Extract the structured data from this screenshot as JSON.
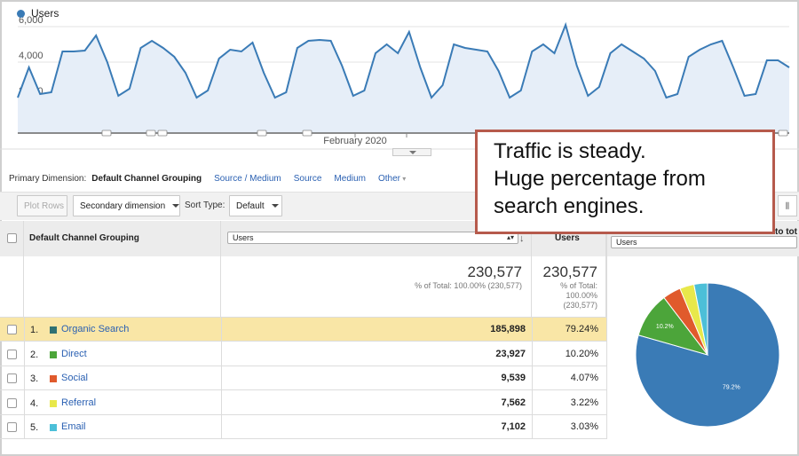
{
  "legend": {
    "label": "Users",
    "color": "#3a7bb6"
  },
  "chart_data": {
    "type": "area",
    "series": [
      {
        "name": "Users",
        "values": [
          2000,
          3700,
          2200,
          2300,
          4600,
          4600,
          4650,
          5500,
          4000,
          2100,
          2500,
          4800,
          5200,
          4800,
          4300,
          3400,
          2000,
          2400,
          4200,
          4700,
          4600,
          5100,
          3400,
          2000,
          2300,
          4800,
          5200,
          5250,
          5200,
          3800,
          2100,
          2400,
          4500,
          5000,
          4500,
          5700,
          3700,
          2000,
          2700,
          5000,
          4800,
          4700,
          4600,
          3500,
          2000,
          2400,
          4600,
          5000,
          4500,
          6100,
          3800,
          2100,
          2600,
          4500,
          5000,
          4600,
          4200,
          3500,
          2000,
          2200,
          4300,
          4700,
          5000,
          5200,
          3700,
          2100,
          2200,
          4100,
          4100,
          3700
        ]
      }
    ],
    "y_ticks": [
      "6,000",
      "4,000",
      "2,000"
    ],
    "ylim": [
      0,
      6500
    ],
    "x_label": "February 2020",
    "grid": true
  },
  "dimension_bar": {
    "label": "Primary Dimension:",
    "active": "Default Channel Grouping",
    "links": [
      "Source / Medium",
      "Source",
      "Medium",
      "Other"
    ]
  },
  "toolbar": {
    "plot_rows": "Plot Rows",
    "secondary_dimension": "Secondary dimension",
    "sort_type_label": "Sort Type:",
    "sort_default": "Default"
  },
  "table": {
    "header": {
      "dimension": "Default Channel Grouping",
      "metric_select": "Users",
      "metric_col": "Users",
      "pie_select": "Users",
      "contribution_label": "to tot"
    },
    "totals": {
      "value": "230,577",
      "subtext": "% of Total: 100.00% (230,577)",
      "value2": "230,577",
      "sub2_line1": "% of Total:",
      "sub2_line2": "100.00%",
      "sub2_line3": "(230,577)"
    },
    "rows": [
      {
        "num": "1.",
        "name": "Organic Search",
        "color": "#2f7173",
        "value": "185,898",
        "pct": "79.24%"
      },
      {
        "num": "2.",
        "name": "Direct",
        "color": "#4ca53a",
        "value": "23,927",
        "pct": "10.20%"
      },
      {
        "num": "3.",
        "name": "Social",
        "color": "#e05a2c",
        "value": "9,539",
        "pct": "4.07%"
      },
      {
        "num": "4.",
        "name": "Referral",
        "color": "#e8e84a",
        "value": "7,562",
        "pct": "3.22%"
      },
      {
        "num": "5.",
        "name": "Email",
        "color": "#4cbfd8",
        "value": "7,102",
        "pct": "3.03%"
      }
    ]
  },
  "pie": {
    "slices": [
      {
        "value": 79.24,
        "color": "#3a7bb6",
        "label": "79.2%"
      },
      {
        "value": 10.2,
        "color": "#4ca53a",
        "label": "10.2%"
      },
      {
        "value": 4.07,
        "color": "#e05a2c",
        "label": ""
      },
      {
        "value": 3.22,
        "color": "#e8e84a",
        "label": ""
      },
      {
        "value": 3.03,
        "color": "#4cbfd8",
        "label": ""
      }
    ]
  },
  "annotation": {
    "line1": "Traffic is steady.",
    "line2": "Huge percentage from",
    "line3": "search engines."
  }
}
